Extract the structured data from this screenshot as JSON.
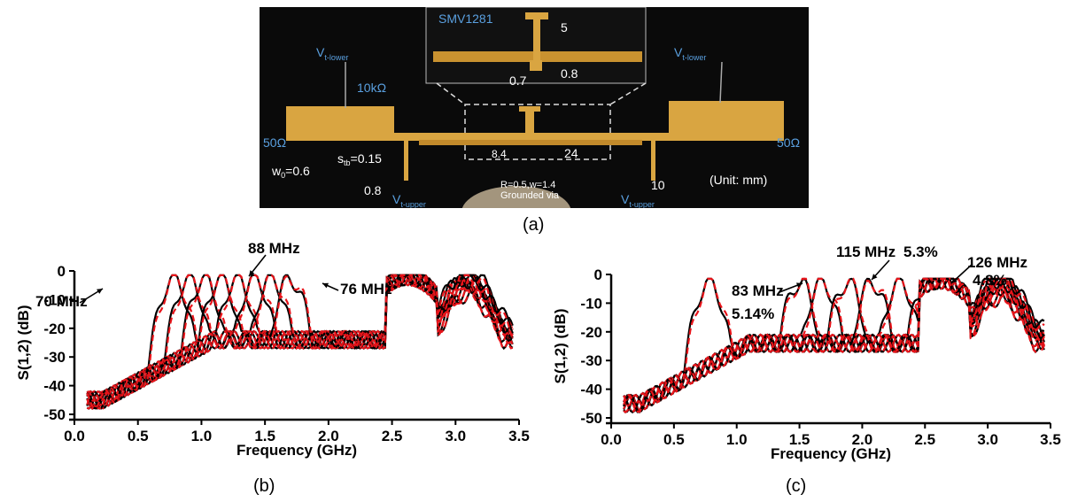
{
  "photo": {
    "labels": {
      "smv": "SMV1281",
      "dim5": "5",
      "dim07": "0.7",
      "dim08a": "0.8",
      "vt_lower_left": "V",
      "vt_lower_left_sub": "t-lower",
      "vt_lower_right": "V",
      "vt_lower_right_sub": "t-lower",
      "resistor": "10kΩ",
      "port_left": "50Ω",
      "port_right": "50Ω",
      "w0": "w",
      "w0_sub": "0",
      "w0_val": "=0.6",
      "stb": "s",
      "stb_sub": "tb",
      "stb_val": "=0.15",
      "dim08b": "0.8",
      "dim84": "8.4",
      "dim24": "24",
      "dim10": "10",
      "via1": "R=0.5,w=1.4",
      "via2": "Grounded via",
      "vt_upper_left": "V",
      "vt_upper_left_sub": "t-upper",
      "vt_upper_right": "V",
      "vt_upper_right_sub": "t-upper",
      "unit": "(Unit:  mm)"
    },
    "colors": {
      "board": "#0a0a0a",
      "copper": "#d9a541",
      "label_blue": "#5aa0e0",
      "label_white": "#ffffff"
    }
  },
  "captions": {
    "a": "(a)",
    "b": "(b)",
    "c": "(c)"
  },
  "chart_data": [
    {
      "type": "line",
      "panel": "b",
      "xlabel": "Frequency (GHz)",
      "ylabel": "S(1,2) (dB)",
      "xlim": [
        0,
        3.5
      ],
      "ylim": [
        -50,
        0
      ],
      "xticks": [
        "0.0",
        "0.5",
        "1.0",
        "1.5",
        "2.0",
        "2.5",
        "3.0",
        "3.5"
      ],
      "yticks": [
        "0",
        "-10",
        "-20",
        "-30",
        "-40",
        "-50"
      ],
      "grid": false,
      "series_colors": {
        "measured": "#000000",
        "simulated": "#e8141a"
      },
      "passband_centers_ghz": [
        0.78,
        0.9,
        1.02,
        1.15,
        1.28,
        1.42,
        1.55,
        1.7
      ],
      "annotations": [
        {
          "text": "88 MHz",
          "x": 1.26,
          "y": 3
        },
        {
          "text": "70 MHz",
          "x": 0.1,
          "y": -5
        },
        {
          "text": "76 MHz",
          "x": 1.85,
          "y": -3
        }
      ]
    },
    {
      "type": "line",
      "panel": "c",
      "xlabel": "Frequency (GHz)",
      "ylabel": "S(1,2) (dB)",
      "xlim": [
        0,
        3.5
      ],
      "ylim": [
        -50,
        0
      ],
      "xticks": [
        "0.0",
        "0.5",
        "1.0",
        "1.5",
        "2.0",
        "2.5",
        "3.0",
        "3.5"
      ],
      "yticks": [
        "0",
        "-10",
        "-20",
        "-30",
        "-40",
        "-50"
      ],
      "grid": false,
      "series_colors": {
        "measured": "#000000",
        "simulated": "#e8141a"
      },
      "passband_centers_ghz": [
        0.78,
        1.5,
        1.68,
        1.88,
        2.08,
        2.3,
        2.52,
        2.72
      ],
      "annotations": [
        {
          "text": "115 MHz",
          "x": 1.7,
          "y": 4
        },
        {
          "text": "5.3%",
          "x": 2.3,
          "y": 4
        },
        {
          "text": "126 MHz",
          "x": 2.95,
          "y": 2
        },
        {
          "text": "4.8%",
          "x": 2.95,
          "y": -5
        },
        {
          "text": "83 MHz",
          "x": 0.85,
          "y": -7
        },
        {
          "text": "5.14%",
          "x": 0.85,
          "y": -16
        }
      ]
    }
  ]
}
